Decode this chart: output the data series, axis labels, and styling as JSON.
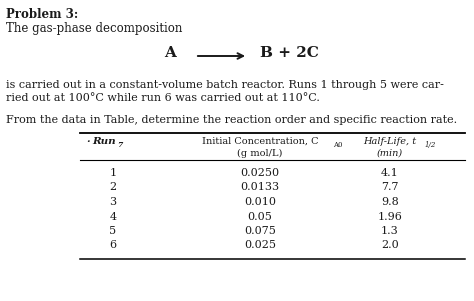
{
  "title_bold": "Problem 3:",
  "subtitle": "The gas-phase decomposition",
  "body_text1": "is carried out in a constant-volume batch reactor. Runs 1 through 5 were car-",
  "body_text2": "ried out at 100°C while run 6 was carried out at 110°C.",
  "body_text3": "From the data in Table, determine the reaction order and specific reaction rate.",
  "runs": [
    1,
    2,
    3,
    4,
    5,
    6
  ],
  "concentrations": [
    "0.0250",
    "0.0133",
    "0.010",
    "0.05",
    "0.075",
    "0.025"
  ],
  "halflives": [
    "4.1",
    "7.7",
    "9.8",
    "1.96",
    "1.3",
    "2.0"
  ],
  "bg_color": "#ffffff",
  "text_color": "#1a1a1a",
  "fig_width": 4.74,
  "fig_height": 3.01,
  "dpi": 100
}
